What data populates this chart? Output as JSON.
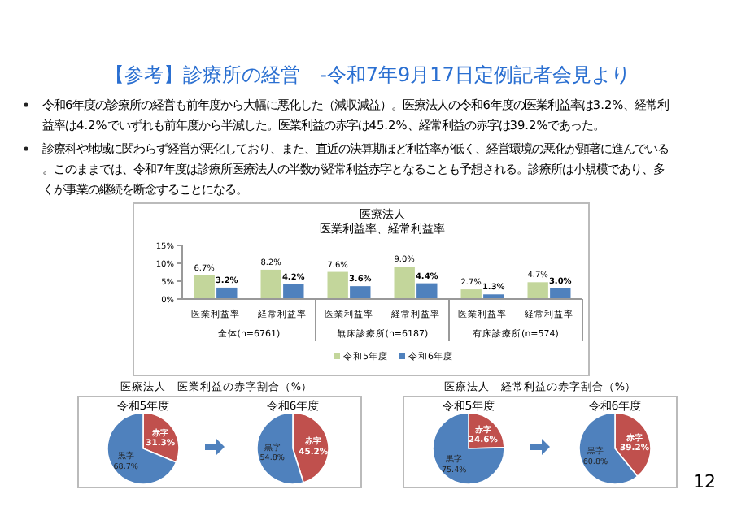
{
  "chart_data": [
    {
      "type": "other",
      "title": "【参考】診療所の経営　-令和7年9月17日定例記者会見より",
      "annotations": [
        "令和6年度の診療所の経営も前年度から大幅に悪化した（減収減益）。医療法人の令和6年度の医業利益率は3.2%、経常利益率は4.2%でいずれも前年度から半減した。医業利益の赤字は45.2%、経常利益の赤字は39.2%であった。",
        "診療科や地域に関わらず経営が悪化しており、また、直近の決算期ほど利益率が低く、経営環境の悪化が顕著に進んでいる。このままでは、令和7年度は診療所医療法人の半数が経常利益赤字となることも予想される。診療所は小規模であり、多くが事業の継続を断念することになる。",
        "12"
      ]
    },
    {
      "type": "bar",
      "title": "医療法人",
      "subtitle": "医業利益率、経常利益率",
      "categories": [
        "医業利益率",
        "経常利益率",
        "医業利益率",
        "経常利益率",
        "医業利益率",
        "経常利益率"
      ],
      "series": [
        {
          "name": "令和5年度",
          "color": "#c3d69b",
          "values": [
            6.7,
            8.2,
            7.6,
            9.0,
            2.7,
            4.7
          ],
          "value_labels": [
            "6.7%",
            "8.2%",
            "7.6%",
            "9.0%",
            "2.7%",
            "4.7%"
          ]
        },
        {
          "name": "令和6年度",
          "color": "#4f81bd",
          "values": [
            3.2,
            4.2,
            3.6,
            4.4,
            1.3,
            3.0
          ],
          "value_labels": [
            "3.2%",
            "4.2%",
            "3.6%",
            "4.4%",
            "1.3%",
            "3.0%"
          ]
        }
      ],
      "ylim": [
        0,
        15
      ],
      "yticks": [
        {
          "value": 0,
          "label": "0%"
        },
        {
          "value": 5,
          "label": "5%"
        },
        {
          "value": 10,
          "label": "10%"
        },
        {
          "value": 15,
          "label": "15%"
        }
      ],
      "legend": "bottom",
      "annotations": [
        "全体(n=6761)",
        "無床診療所(n=6187)",
        "有床診療所(n=574)"
      ]
    },
    {
      "type": "pie",
      "title": "医療法人　医業利益の赤字割合（%）",
      "subtitle": "令和5年度",
      "categories": [
        "赤字",
        "黒字"
      ],
      "values": [
        31.3,
        68.7
      ],
      "colors": [
        "#c0504d",
        "#4f81bd"
      ],
      "value_labels": [
        "31.3%",
        "68.7%"
      ]
    },
    {
      "type": "pie",
      "subtitle": "令和6年度",
      "categories": [
        "赤字",
        "黒字"
      ],
      "values": [
        45.2,
        54.8
      ],
      "colors": [
        "#c0504d",
        "#4f81bd"
      ],
      "value_labels": [
        "45.2%",
        "54.8%"
      ]
    },
    {
      "type": "pie",
      "title": "医療法人　経常利益の赤字割合（%）",
      "subtitle": "令和5年度",
      "categories": [
        "赤字",
        "黒字"
      ],
      "values": [
        24.6,
        75.4
      ],
      "colors": [
        "#c0504d",
        "#4f81bd"
      ],
      "value_labels": [
        "24.6%",
        "75.4%"
      ]
    },
    {
      "type": "pie",
      "subtitle": "令和6年度",
      "categories": [
        "赤字",
        "黒字"
      ],
      "values": [
        39.2,
        60.8
      ],
      "colors": [
        "#c0504d",
        "#4f81bd"
      ],
      "value_labels": [
        "39.2%",
        "60.8%"
      ]
    }
  ]
}
